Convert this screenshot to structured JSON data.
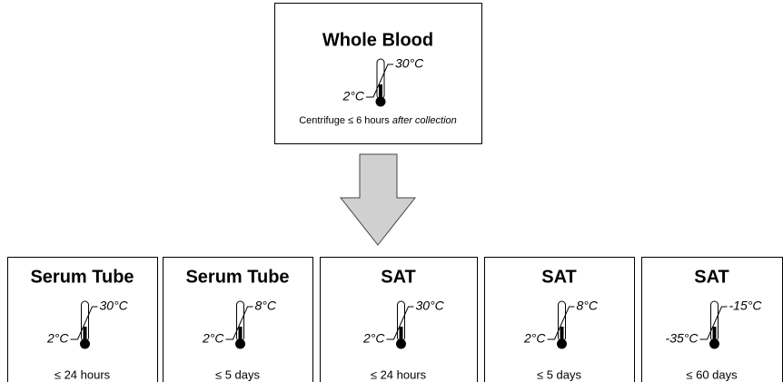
{
  "source": {
    "title": "Whole Blood",
    "high": "30°C",
    "low": "2°C",
    "note": "Centrifuge ≤ 6 hours ",
    "note_italic": "after collection"
  },
  "targets": [
    {
      "title": "Serum Tube",
      "high": "30°C",
      "low": "2°C",
      "duration": "≤ 24 hours"
    },
    {
      "title": "Serum Tube",
      "high": "8°C",
      "low": "2°C",
      "duration": "≤ 5 days"
    },
    {
      "title": "SAT",
      "high": "30°C",
      "low": "2°C",
      "duration": "≤ 24 hours"
    },
    {
      "title": "SAT",
      "high": "8°C",
      "low": "2°C",
      "duration": "≤ 5 days"
    },
    {
      "title": "SAT",
      "high": "-15°C",
      "low": "-35°C",
      "duration": "≤ 60 days"
    }
  ]
}
